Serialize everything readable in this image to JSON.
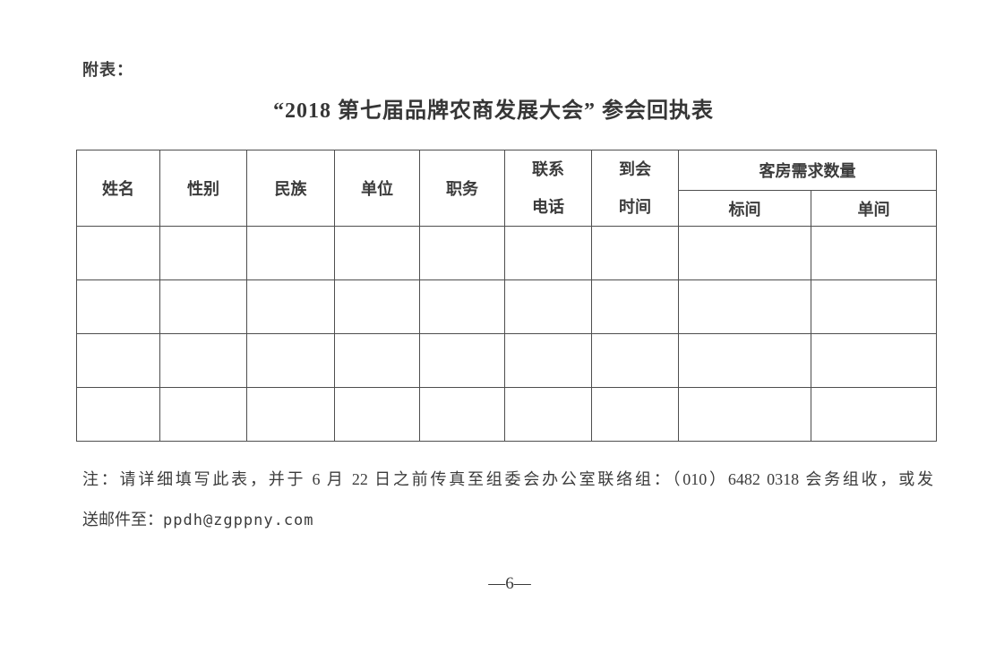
{
  "document": {
    "attachment_label": "附表：",
    "title": "“2018 第七届品牌农商发展大会” 参会回执表",
    "page_number": "—6—"
  },
  "table": {
    "headers": {
      "name": "姓名",
      "gender": "性别",
      "ethnicity": "民族",
      "work_unit": "单位",
      "job_title": "职务",
      "contact_phone_line1": "联系",
      "contact_phone_line2": "电话",
      "arrival_time_line1": "到会",
      "arrival_time_line2": "时间",
      "room_demand_group": "客房需求数量",
      "standard_room": "标间",
      "single_room": "单间"
    },
    "rows": [
      [
        "",
        "",
        "",
        "",
        "",
        "",
        "",
        "",
        ""
      ],
      [
        "",
        "",
        "",
        "",
        "",
        "",
        "",
        "",
        ""
      ],
      [
        "",
        "",
        "",
        "",
        "",
        "",
        "",
        "",
        ""
      ],
      [
        "",
        "",
        "",
        "",
        "",
        "",
        "",
        "",
        ""
      ]
    ]
  },
  "note": {
    "line1": "注：请详细填写此表，并于 6 月 22 日之前传真至组委会办公室联络组：（010）6482 0318 会务组收，或发",
    "line2_text": "送邮件至：",
    "email": "ppdh@zgppny.com"
  }
}
